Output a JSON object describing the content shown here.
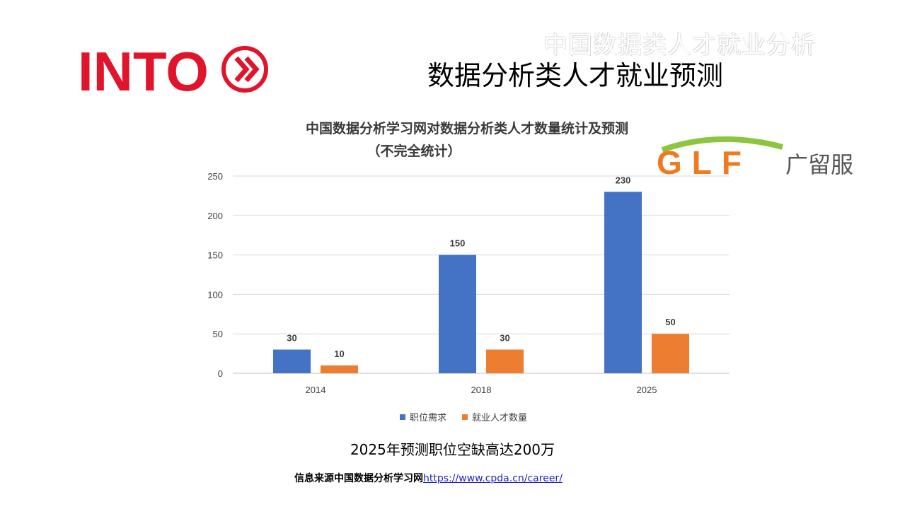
{
  "logos": {
    "into": "INTO",
    "glf_letters": "GLF",
    "glf_text": "广留服"
  },
  "header": {
    "ghost_title": "中国数据类人才就业分析",
    "title": "数据分析类人才就业预测"
  },
  "colors": {
    "into_red": "#e0142a",
    "series1": "#4472c4",
    "series2": "#ed7d31",
    "glf_orange": "#f07a1e",
    "glf_green": "#8cc63f",
    "glf_blue": "#2a9fd8"
  },
  "chart_data": {
    "type": "bar",
    "title": "中国数据分析学习网对数据分析类人才数量统计及预测",
    "subtitle": "（不完全统计）",
    "categories": [
      "2014",
      "2018",
      "2025"
    ],
    "series": [
      {
        "name": "职位需求",
        "values": [
          30,
          150,
          230
        ]
      },
      {
        "name": "就业人才数量",
        "values": [
          10,
          30,
          50
        ]
      }
    ],
    "ylim": [
      0,
      250
    ],
    "yticks": [
      "0",
      "50",
      "100",
      "150",
      "200",
      "250"
    ],
    "grid": true,
    "legend_position": "bottom",
    "data_labels": true
  },
  "footnote": "2025年预测职位空缺高达200万",
  "source": {
    "label": "信息来源中国数据分析学习网",
    "link": "https://www.cpda.cn/career/"
  }
}
